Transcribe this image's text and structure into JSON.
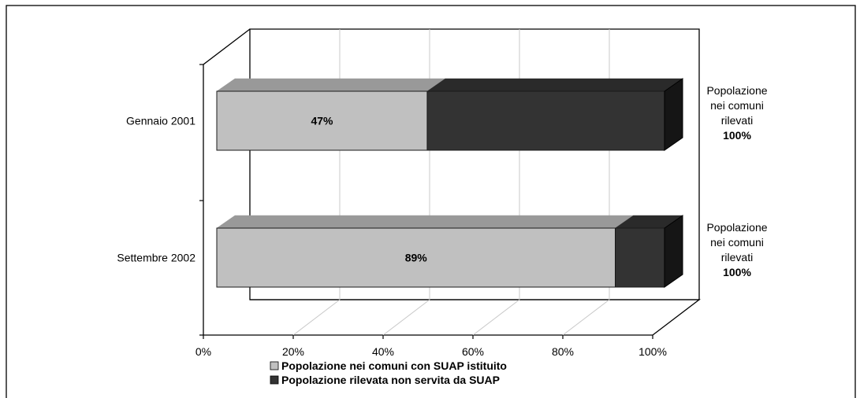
{
  "chart_data": {
    "type": "bar",
    "orientation": "horizontal",
    "stacked": "percent",
    "three_d": true,
    "categories": [
      "Gennaio 2001",
      "Settembre 2002"
    ],
    "series": [
      {
        "name": "Popolazione nei comuni con SUAP istituito",
        "values": [
          47,
          89
        ],
        "data_labels": [
          "47%",
          "89%"
        ],
        "color": "#c0c0c0"
      },
      {
        "name": "Popolazione rilevata non servita da SUAP",
        "values": [
          53,
          11
        ],
        "color": "#333333"
      }
    ],
    "x_ticks": [
      "0%",
      "20%",
      "40%",
      "60%",
      "80%",
      "100%"
    ],
    "xlim": [
      0,
      100
    ],
    "grid": true,
    "legend_position": "bottom",
    "annotations": [
      {
        "category": "Gennaio 2001",
        "lines": [
          "Popolazione",
          "nei comuni",
          "rilevati"
        ],
        "value": "100%"
      },
      {
        "category": "Settembre 2002",
        "lines": [
          "Popolazione",
          "nei comuni",
          "rilevati"
        ],
        "value": "100%"
      }
    ]
  }
}
